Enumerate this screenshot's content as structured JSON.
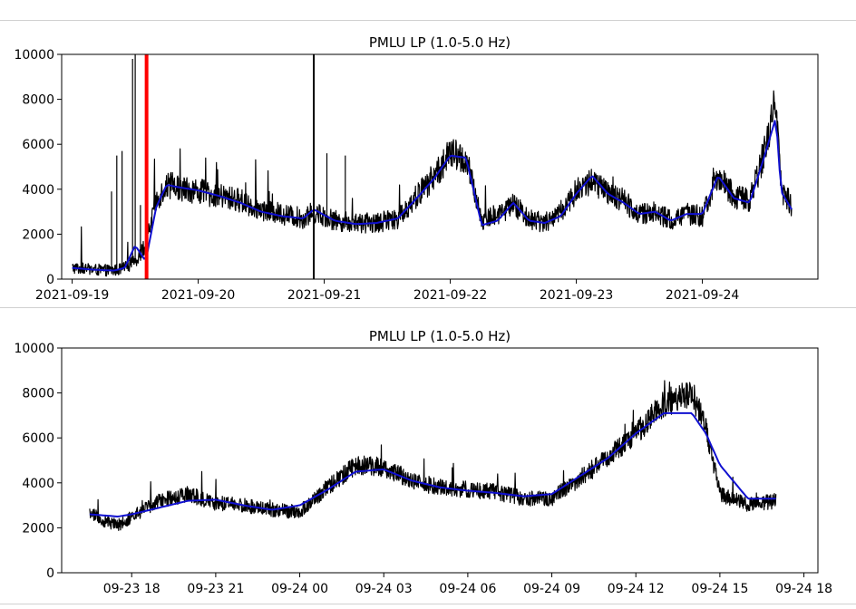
{
  "chart_data": [
    {
      "type": "line",
      "title": "PMLU LP (1.0-5.0 Hz)",
      "xlabel": "",
      "ylabel": "",
      "ylim": [
        0,
        10000
      ],
      "yticks": [
        0,
        2000,
        4000,
        6000,
        8000,
        10000
      ],
      "xlim": [
        "2021-09-18T22:00",
        "2021-09-24T22:00"
      ],
      "xticks": [
        {
          "t": "2021-09-19T00:00",
          "label": "2021-09-19"
        },
        {
          "t": "2021-09-20T00:00",
          "label": "2021-09-20"
        },
        {
          "t": "2021-09-21T00:00",
          "label": "2021-09-21"
        },
        {
          "t": "2021-09-22T00:00",
          "label": "2021-09-22"
        },
        {
          "t": "2021-09-23T00:00",
          "label": "2021-09-23"
        },
        {
          "t": "2021-09-24T00:00",
          "label": "2021-09-24"
        }
      ],
      "grid": false,
      "legend": "none",
      "vertical_markers": [
        {
          "t": "2021-09-19T14:10",
          "color": "#ff0000"
        },
        {
          "t": "2021-09-20T22:00",
          "color": "#000000"
        }
      ],
      "series": [
        {
          "role": "raw",
          "color": "#000000",
          "x": [
            "2021-09-19T00:00",
            "2021-09-19T04:00",
            "2021-09-19T08:00",
            "2021-09-19T10:00",
            "2021-09-19T12:00",
            "2021-09-19T14:00",
            "2021-09-19T16:00",
            "2021-09-19T18:00",
            "2021-09-19T20:00",
            "2021-09-20T00:00",
            "2021-09-20T04:00",
            "2021-09-20T08:00",
            "2021-09-20T12:00",
            "2021-09-20T16:00",
            "2021-09-20T20:00",
            "2021-09-20T22:00",
            "2021-09-21T02:00",
            "2021-09-21T06:00",
            "2021-09-21T10:00",
            "2021-09-21T14:00",
            "2021-09-21T18:00",
            "2021-09-21T21:00",
            "2021-09-22T00:00",
            "2021-09-22T03:00",
            "2021-09-22T06:00",
            "2021-09-22T09:00",
            "2021-09-22T12:00",
            "2021-09-22T15:00",
            "2021-09-22T18:00",
            "2021-09-22T21:00",
            "2021-09-23T00:00",
            "2021-09-23T03:00",
            "2021-09-23T06:00",
            "2021-09-23T09:00",
            "2021-09-23T12:00",
            "2021-09-23T15:00",
            "2021-09-23T18:00",
            "2021-09-23T21:00",
            "2021-09-24T00:00",
            "2021-09-24T03:00",
            "2021-09-24T06:00",
            "2021-09-24T09:00",
            "2021-09-24T12:00",
            "2021-09-24T14:00",
            "2021-09-24T15:00",
            "2021-09-24T17:00"
          ],
          "y": [
            500,
            420,
            380,
            500,
            800,
            1500,
            3500,
            4200,
            4100,
            3900,
            3700,
            3500,
            3100,
            2900,
            2700,
            3000,
            2600,
            2500,
            2500,
            2700,
            3800,
            4600,
            5600,
            5300,
            2600,
            2900,
            3300,
            2700,
            2500,
            3000,
            3900,
            4400,
            3800,
            3500,
            2900,
            3000,
            2600,
            2900,
            2800,
            4600,
            3700,
            3500,
            5800,
            8000,
            4000,
            3300
          ],
          "noise": 1800
        },
        {
          "role": "smoothed",
          "color": "#1010d0",
          "x": [
            "2021-09-19T00:00",
            "2021-09-19T04:00",
            "2021-09-19T08:00",
            "2021-09-19T10:00",
            "2021-09-19T12:00",
            "2021-09-19T14:00",
            "2021-09-19T16:00",
            "2021-09-19T18:00",
            "2021-09-19T20:00",
            "2021-09-20T00:00",
            "2021-09-20T04:00",
            "2021-09-20T08:00",
            "2021-09-20T12:00",
            "2021-09-20T16:00",
            "2021-09-20T20:00",
            "2021-09-20T22:00",
            "2021-09-21T02:00",
            "2021-09-21T06:00",
            "2021-09-21T10:00",
            "2021-09-21T14:00",
            "2021-09-21T18:00",
            "2021-09-21T21:00",
            "2021-09-22T00:00",
            "2021-09-22T03:00",
            "2021-09-22T06:00",
            "2021-09-22T09:00",
            "2021-09-22T12:00",
            "2021-09-22T15:00",
            "2021-09-22T18:00",
            "2021-09-22T21:00",
            "2021-09-23T00:00",
            "2021-09-23T03:00",
            "2021-09-23T06:00",
            "2021-09-23T09:00",
            "2021-09-23T12:00",
            "2021-09-23T15:00",
            "2021-09-23T18:00",
            "2021-09-23T21:00",
            "2021-09-24T00:00",
            "2021-09-24T03:00",
            "2021-09-24T06:00",
            "2021-09-24T09:00",
            "2021-09-24T12:00",
            "2021-09-24T14:00",
            "2021-09-24T15:00",
            "2021-09-24T17:00"
          ],
          "y": [
            500,
            420,
            380,
            500,
            1500,
            800,
            3200,
            4200,
            4100,
            3950,
            3700,
            3400,
            3000,
            2800,
            2700,
            3100,
            2600,
            2450,
            2500,
            2700,
            3700,
            4500,
            5500,
            5400,
            2400,
            2600,
            3400,
            2600,
            2500,
            2800,
            3800,
            4600,
            3800,
            3400,
            2900,
            3000,
            2600,
            2900,
            2900,
            4600,
            3600,
            3400,
            5600,
            7200,
            3900,
            3100
          ]
        }
      ]
    },
    {
      "type": "line",
      "title": "PMLU LP (1.0-5.0 Hz)",
      "xlabel": "",
      "ylabel": "",
      "ylim": [
        0,
        10000
      ],
      "yticks": [
        0,
        2000,
        4000,
        6000,
        8000,
        10000
      ],
      "xlim": [
        "2021-09-23T15:30",
        "2021-09-24T18:30"
      ],
      "xticks": [
        {
          "t": "2021-09-23T18:00",
          "label": "09-23 18"
        },
        {
          "t": "2021-09-23T21:00",
          "label": "09-23 21"
        },
        {
          "t": "2021-09-24T00:00",
          "label": "09-24 00"
        },
        {
          "t": "2021-09-24T03:00",
          "label": "09-24 03"
        },
        {
          "t": "2021-09-24T06:00",
          "label": "09-24 06"
        },
        {
          "t": "2021-09-24T09:00",
          "label": "09-24 09"
        },
        {
          "t": "2021-09-24T12:00",
          "label": "09-24 12"
        },
        {
          "t": "2021-09-24T15:00",
          "label": "09-24 15"
        },
        {
          "t": "2021-09-24T18:00",
          "label": "09-24 18"
        }
      ],
      "grid": false,
      "legend": "none",
      "series": [
        {
          "role": "raw",
          "color": "#000000",
          "x": [
            "2021-09-23T16:30",
            "2021-09-23T17:00",
            "2021-09-23T17:30",
            "2021-09-23T18:00",
            "2021-09-23T19:00",
            "2021-09-23T20:00",
            "2021-09-23T21:00",
            "2021-09-23T22:00",
            "2021-09-23T23:00",
            "2021-09-24T00:00",
            "2021-09-24T01:00",
            "2021-09-24T02:00",
            "2021-09-24T03:00",
            "2021-09-24T04:00",
            "2021-09-24T05:00",
            "2021-09-24T06:00",
            "2021-09-24T07:00",
            "2021-09-24T08:00",
            "2021-09-24T09:00",
            "2021-09-24T10:00",
            "2021-09-24T11:00",
            "2021-09-24T12:00",
            "2021-09-24T13:00",
            "2021-09-24T14:00",
            "2021-09-24T14:30",
            "2021-09-24T15:00",
            "2021-09-24T16:00",
            "2021-09-24T17:00"
          ],
          "y": [
            2700,
            2300,
            2100,
            2500,
            3200,
            3500,
            3100,
            3000,
            2800,
            2700,
            3800,
            4800,
            4700,
            4100,
            3800,
            3700,
            3600,
            3300,
            3300,
            4200,
            5100,
            6200,
            7500,
            8000,
            6500,
            3500,
            3000,
            3200
          ],
          "noise": 1200
        },
        {
          "role": "smoothed",
          "color": "#1010d0",
          "x": [
            "2021-09-23T16:30",
            "2021-09-23T17:00",
            "2021-09-23T17:30",
            "2021-09-23T18:00",
            "2021-09-23T19:00",
            "2021-09-23T20:00",
            "2021-09-23T21:00",
            "2021-09-23T22:00",
            "2021-09-23T23:00",
            "2021-09-24T00:00",
            "2021-09-24T01:00",
            "2021-09-24T02:00",
            "2021-09-24T03:00",
            "2021-09-24T04:00",
            "2021-09-24T05:00",
            "2021-09-24T06:00",
            "2021-09-24T07:00",
            "2021-09-24T08:00",
            "2021-09-24T09:00",
            "2021-09-24T10:00",
            "2021-09-24T11:00",
            "2021-09-24T12:00",
            "2021-09-24T13:00",
            "2021-09-24T14:00",
            "2021-09-24T14:30",
            "2021-09-24T15:00",
            "2021-09-24T16:00",
            "2021-09-24T17:00"
          ],
          "y": [
            2600,
            2550,
            2500,
            2600,
            2900,
            3200,
            3250,
            3000,
            2800,
            3000,
            3700,
            4500,
            4600,
            4100,
            3800,
            3650,
            3550,
            3400,
            3500,
            4300,
            5100,
            6200,
            7100,
            7100,
            6200,
            4800,
            3300,
            3300
          ]
        }
      ]
    }
  ]
}
